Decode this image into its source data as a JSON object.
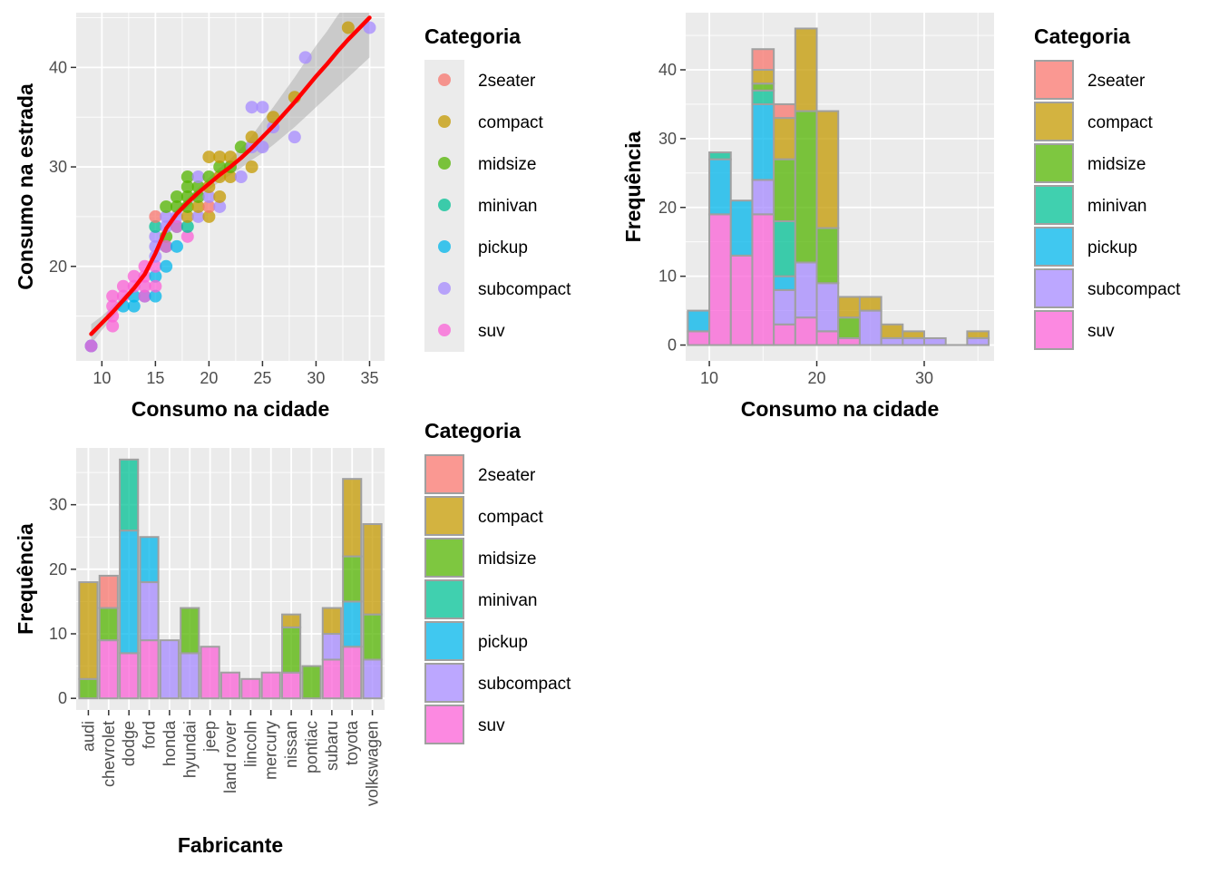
{
  "categories": [
    "2seater",
    "compact",
    "midsize",
    "minivan",
    "pickup",
    "subcompact",
    "suv"
  ],
  "colors": {
    "2seater": "#F8766D",
    "compact": "#C49A00",
    "midsize": "#53B400",
    "minivan": "#00C094",
    "pickup": "#00B6EB",
    "subcompact": "#A58AFF",
    "suv": "#FB61D7",
    "panel": "#EBEBEB",
    "grid": "#FFFFFF",
    "smooth_line": "#FF0000",
    "bar_outline": "#A0A0A0"
  },
  "legends": [
    {
      "title": "Categoria",
      "labels": [
        "2seater",
        "compact",
        "midsize",
        "minivan",
        "pickup",
        "subcompact",
        "suv"
      ],
      "key": "point"
    },
    {
      "title": "Categoria",
      "labels": [
        "2seater",
        "compact",
        "midsize",
        "minivan",
        "pickup",
        "subcompact",
        "suv"
      ],
      "key": "fill"
    },
    {
      "title": "Categoria",
      "labels": [
        "2seater",
        "compact",
        "midsize",
        "minivan",
        "pickup",
        "subcompact",
        "suv"
      ],
      "key": "fill"
    }
  ],
  "chart_data": [
    {
      "type": "scatter",
      "xlabel": "Consumo na cidade",
      "ylabel": "Consumo na estrada",
      "xlim": [
        7.6,
        36.4
      ],
      "ylim": [
        10.5,
        45.5
      ],
      "xticks": [
        10,
        15,
        20,
        25,
        30,
        35
      ],
      "yticks": [
        20,
        30,
        40
      ],
      "points": [
        {
          "x": 9,
          "y": 12,
          "c": "subcompact"
        },
        {
          "x": 9,
          "y": 12,
          "c": "pickup"
        },
        {
          "x": 9,
          "y": 12,
          "c": "suv"
        },
        {
          "x": 11,
          "y": 17,
          "c": "suv"
        },
        {
          "x": 11,
          "y": 16,
          "c": "suv"
        },
        {
          "x": 11,
          "y": 15,
          "c": "suv"
        },
        {
          "x": 11,
          "y": 14,
          "c": "suv"
        },
        {
          "x": 12,
          "y": 17,
          "c": "suv"
        },
        {
          "x": 12,
          "y": 16,
          "c": "pickup"
        },
        {
          "x": 12,
          "y": 18,
          "c": "suv"
        },
        {
          "x": 13,
          "y": 16,
          "c": "pickup"
        },
        {
          "x": 13,
          "y": 17,
          "c": "pickup"
        },
        {
          "x": 13,
          "y": 19,
          "c": "suv"
        },
        {
          "x": 13,
          "y": 18,
          "c": "suv"
        },
        {
          "x": 14,
          "y": 17,
          "c": "pickup"
        },
        {
          "x": 14,
          "y": 17,
          "c": "suv"
        },
        {
          "x": 14,
          "y": 19,
          "c": "suv"
        },
        {
          "x": 14,
          "y": 20,
          "c": "suv"
        },
        {
          "x": 14,
          "y": 18,
          "c": "suv"
        },
        {
          "x": 15,
          "y": 17,
          "c": "pickup"
        },
        {
          "x": 15,
          "y": 19,
          "c": "pickup"
        },
        {
          "x": 15,
          "y": 20,
          "c": "suv"
        },
        {
          "x": 15,
          "y": 21,
          "c": "subcompact"
        },
        {
          "x": 15,
          "y": 22,
          "c": "subcompact"
        },
        {
          "x": 15,
          "y": 23,
          "c": "subcompact"
        },
        {
          "x": 15,
          "y": 24,
          "c": "minivan"
        },
        {
          "x": 15,
          "y": 25,
          "c": "2seater"
        },
        {
          "x": 15,
          "y": 18,
          "c": "suv"
        },
        {
          "x": 16,
          "y": 20,
          "c": "pickup"
        },
        {
          "x": 16,
          "y": 22,
          "c": "minivan"
        },
        {
          "x": 16,
          "y": 23,
          "c": "midsize"
        },
        {
          "x": 16,
          "y": 24,
          "c": "subcompact"
        },
        {
          "x": 16,
          "y": 25,
          "c": "subcompact"
        },
        {
          "x": 16,
          "y": 26,
          "c": "midsize"
        },
        {
          "x": 16,
          "y": 22,
          "c": "suv"
        },
        {
          "x": 17,
          "y": 22,
          "c": "pickup"
        },
        {
          "x": 17,
          "y": 24,
          "c": "minivan"
        },
        {
          "x": 17,
          "y": 25,
          "c": "subcompact"
        },
        {
          "x": 17,
          "y": 26,
          "c": "midsize"
        },
        {
          "x": 17,
          "y": 27,
          "c": "midsize"
        },
        {
          "x": 17,
          "y": 24,
          "c": "suv"
        },
        {
          "x": 18,
          "y": 23,
          "c": "suv"
        },
        {
          "x": 18,
          "y": 24,
          "c": "minivan"
        },
        {
          "x": 18,
          "y": 25,
          "c": "compact"
        },
        {
          "x": 18,
          "y": 26,
          "c": "midsize"
        },
        {
          "x": 18,
          "y": 27,
          "c": "midsize"
        },
        {
          "x": 18,
          "y": 28,
          "c": "midsize"
        },
        {
          "x": 18,
          "y": 29,
          "c": "midsize"
        },
        {
          "x": 19,
          "y": 25,
          "c": "subcompact"
        },
        {
          "x": 19,
          "y": 26,
          "c": "compact"
        },
        {
          "x": 19,
          "y": 27,
          "c": "midsize"
        },
        {
          "x": 19,
          "y": 28,
          "c": "midsize"
        },
        {
          "x": 19,
          "y": 29,
          "c": "subcompact"
        },
        {
          "x": 20,
          "y": 25,
          "c": "compact"
        },
        {
          "x": 20,
          "y": 26,
          "c": "2seater"
        },
        {
          "x": 20,
          "y": 27,
          "c": "subcompact"
        },
        {
          "x": 20,
          "y": 28,
          "c": "compact"
        },
        {
          "x": 20,
          "y": 29,
          "c": "midsize"
        },
        {
          "x": 20,
          "y": 31,
          "c": "compact"
        },
        {
          "x": 21,
          "y": 26,
          "c": "subcompact"
        },
        {
          "x": 21,
          "y": 27,
          "c": "compact"
        },
        {
          "x": 21,
          "y": 29,
          "c": "compact"
        },
        {
          "x": 21,
          "y": 30,
          "c": "midsize"
        },
        {
          "x": 21,
          "y": 31,
          "c": "compact"
        },
        {
          "x": 22,
          "y": 29,
          "c": "compact"
        },
        {
          "x": 22,
          "y": 30,
          "c": "midsize"
        },
        {
          "x": 22,
          "y": 31,
          "c": "compact"
        },
        {
          "x": 23,
          "y": 29,
          "c": "subcompact"
        },
        {
          "x": 23,
          "y": 32,
          "c": "midsize"
        },
        {
          "x": 24,
          "y": 30,
          "c": "compact"
        },
        {
          "x": 24,
          "y": 32,
          "c": "subcompact"
        },
        {
          "x": 24,
          "y": 33,
          "c": "compact"
        },
        {
          "x": 24,
          "y": 36,
          "c": "subcompact"
        },
        {
          "x": 25,
          "y": 32,
          "c": "subcompact"
        },
        {
          "x": 25,
          "y": 36,
          "c": "subcompact"
        },
        {
          "x": 26,
          "y": 34,
          "c": "subcompact"
        },
        {
          "x": 26,
          "y": 35,
          "c": "compact"
        },
        {
          "x": 28,
          "y": 33,
          "c": "subcompact"
        },
        {
          "x": 28,
          "y": 37,
          "c": "compact"
        },
        {
          "x": 29,
          "y": 41,
          "c": "subcompact"
        },
        {
          "x": 33,
          "y": 44,
          "c": "compact"
        },
        {
          "x": 35,
          "y": 44,
          "c": "subcompact"
        }
      ],
      "smooth": {
        "x": [
          9,
          10,
          11,
          12,
          13,
          14,
          15,
          16,
          17,
          18,
          19,
          20,
          21,
          22,
          23,
          24,
          25,
          26,
          27,
          28,
          29,
          30,
          31,
          32,
          33,
          34,
          35
        ],
        "y": [
          13.2,
          14.3,
          15.4,
          16.6,
          17.8,
          19.2,
          21.3,
          23.8,
          25.3,
          26.4,
          27.4,
          28.3,
          29.2,
          30.0,
          30.9,
          31.9,
          33.0,
          34.1,
          35.3,
          36.5,
          37.8,
          39.1,
          40.3,
          41.6,
          42.8,
          43.9,
          45.0
        ],
        "ymin": [
          12.2,
          13.6,
          14.8,
          16.1,
          17.4,
          18.8,
          20.9,
          23.3,
          24.8,
          25.9,
          26.9,
          27.7,
          28.5,
          29.2,
          29.9,
          30.7,
          31.4,
          32.2,
          33.1,
          34.0,
          35.0,
          36.0,
          37.0,
          38.0,
          39.0,
          40.0,
          41.0
        ],
        "ymax": [
          14.2,
          15.0,
          16.0,
          17.1,
          18.2,
          19.6,
          21.7,
          24.3,
          25.8,
          26.9,
          27.9,
          28.9,
          29.9,
          30.8,
          31.9,
          33.1,
          34.6,
          36.0,
          37.5,
          39.0,
          40.6,
          42.2,
          43.6,
          45.2,
          46.6,
          47.8,
          49.0
        ]
      }
    },
    {
      "type": "bar",
      "stacked": true,
      "xlabel": "Consumo na cidade",
      "ylabel": "Frequência",
      "xlim": [
        7.8,
        36.5
      ],
      "ylim": [
        -2.3,
        48.3
      ],
      "xticks": [
        10,
        20,
        30
      ],
      "yticks": [
        0,
        10,
        20,
        30,
        40
      ],
      "bins": [
        {
          "x0": 8,
          "x1": 10,
          "stack": {
            "pickup": 3,
            "suv": 2
          }
        },
        {
          "x0": 10,
          "x1": 12,
          "stack": {
            "suv": 19,
            "pickup": 8,
            "minivan": 1
          }
        },
        {
          "x0": 12,
          "x1": 14,
          "stack": {
            "suv": 13,
            "pickup": 8
          }
        },
        {
          "x0": 14,
          "x1": 16,
          "stack": {
            "suv": 19,
            "subcompact": 5,
            "pickup": 11,
            "minivan": 2,
            "midsize": 1,
            "compact": 2,
            "2seater": 3
          }
        },
        {
          "x0": 16,
          "x1": 18,
          "stack": {
            "suv": 3,
            "subcompact": 5,
            "pickup": 2,
            "minivan": 8,
            "midsize": 9,
            "compact": 6,
            "2seater": 2
          }
        },
        {
          "x0": 18,
          "x1": 20,
          "stack": {
            "suv": 4,
            "subcompact": 8,
            "midsize": 22,
            "compact": 12
          }
        },
        {
          "x0": 20,
          "x1": 22,
          "stack": {
            "suv": 2,
            "subcompact": 7,
            "midsize": 8,
            "compact": 17
          }
        },
        {
          "x0": 22,
          "x1": 24,
          "stack": {
            "suv": 1,
            "midsize": 3,
            "compact": 3
          }
        },
        {
          "x0": 24,
          "x1": 26,
          "stack": {
            "subcompact": 5,
            "compact": 2
          }
        },
        {
          "x0": 26,
          "x1": 28,
          "stack": {
            "subcompact": 1,
            "compact": 2
          }
        },
        {
          "x0": 28,
          "x1": 30,
          "stack": {
            "subcompact": 1,
            "compact": 1
          }
        },
        {
          "x0": 30,
          "x1": 32,
          "stack": {
            "subcompact": 1
          }
        },
        {
          "x0": 32,
          "x1": 34,
          "stack": {}
        },
        {
          "x0": 34,
          "x1": 36,
          "stack": {
            "subcompact": 1,
            "compact": 1
          }
        }
      ]
    },
    {
      "type": "bar",
      "stacked": true,
      "xlabel": "Fabricante",
      "ylabel": "Frequência",
      "ylim": [
        -1.8,
        38.8
      ],
      "yticks": [
        0,
        10,
        20,
        30
      ],
      "manufacturers": [
        "audi",
        "chevrolet",
        "dodge",
        "ford",
        "honda",
        "hyundai",
        "jeep",
        "land rover",
        "lincoln",
        "mercury",
        "nissan",
        "pontiac",
        "subaru",
        "toyota",
        "volkswagen"
      ],
      "stacks": [
        {
          "midsize": 3,
          "compact": 15
        },
        {
          "suv": 9,
          "midsize": 5,
          "2seater": 5
        },
        {
          "suv": 7,
          "pickup": 19,
          "minivan": 11
        },
        {
          "suv": 9,
          "subcompact": 9,
          "pickup": 7
        },
        {
          "subcompact": 9
        },
        {
          "subcompact": 7,
          "midsize": 7
        },
        {
          "suv": 8
        },
        {
          "suv": 4
        },
        {
          "suv": 3
        },
        {
          "suv": 4
        },
        {
          "suv": 4,
          "midsize": 7,
          "compact": 2
        },
        {
          "midsize": 5
        },
        {
          "suv": 6,
          "subcompact": 4,
          "compact": 4
        },
        {
          "suv": 8,
          "pickup": 7,
          "midsize": 7,
          "compact": 12
        },
        {
          "subcompact": 6,
          "midsize": 7,
          "compact": 14
        }
      ]
    }
  ]
}
